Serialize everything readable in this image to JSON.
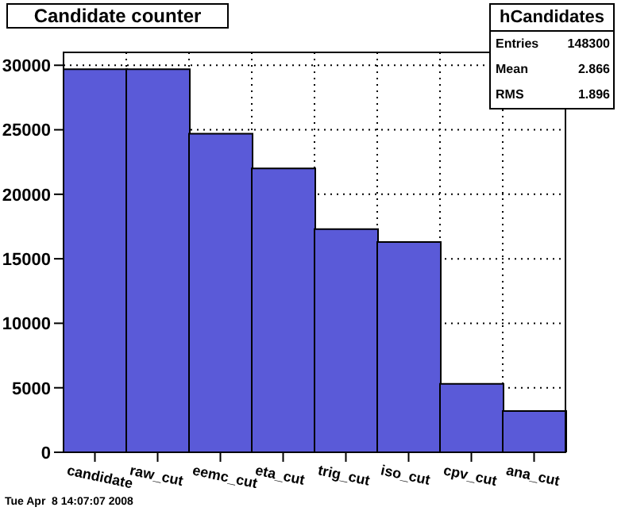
{
  "chart_data": {
    "type": "bar",
    "title": "Candidate counter",
    "categories": [
      "candidate",
      "raw_cut",
      "eemc_cut",
      "eta_cut",
      "trig_cut",
      "iso_cut",
      "cpv_cut",
      "ana_cut"
    ],
    "values": [
      29700,
      29700,
      24700,
      22000,
      17300,
      16300,
      5300,
      3200
    ],
    "color": "#5a5ad8",
    "ylim": [
      0,
      31000
    ],
    "yticks": [
      0,
      5000,
      10000,
      15000,
      20000,
      25000,
      30000
    ],
    "grid": true,
    "annotations": [
      "hCandidates",
      "Entries 148300",
      "Mean 2.866",
      "RMS 1.896",
      "Tue Apr  8 14:07:07 2008"
    ]
  }
}
